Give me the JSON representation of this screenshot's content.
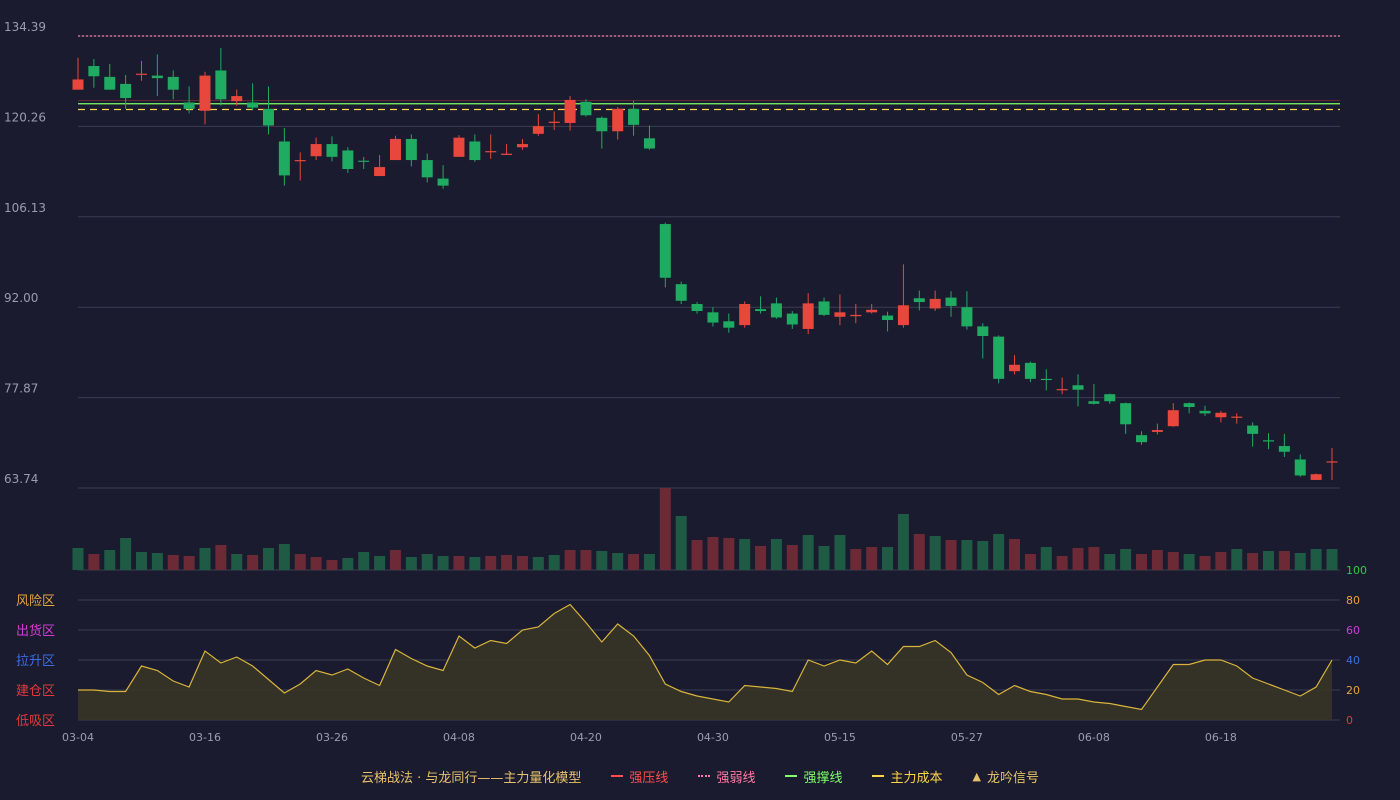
{
  "chart_data": {
    "type": "candlestick",
    "price_ticks": [
      "134.39",
      "120.26",
      "106.13",
      "92.00",
      "77.87",
      "63.74"
    ],
    "price_range": [
      63.74,
      134.39
    ],
    "date_ticks": [
      "03-04",
      "03-16",
      "03-26",
      "04-08",
      "04-20",
      "04-30",
      "05-15",
      "05-27",
      "06-08",
      "06-18"
    ],
    "candles": [
      [
        126.0,
        127.6,
        126.0,
        131.0
      ],
      [
        129.7,
        128.1,
        126.3,
        130.8
      ],
      [
        128.0,
        126.0,
        126.0,
        130.0
      ],
      [
        126.9,
        124.7,
        123.0,
        128.3
      ],
      [
        128.4,
        128.5,
        127.4,
        130.5
      ],
      [
        128.2,
        127.8,
        125.0,
        131.5
      ],
      [
        128.0,
        126.0,
        124.5,
        129.0
      ],
      [
        124.0,
        123.0,
        122.3,
        126.5
      ],
      [
        122.7,
        128.2,
        120.6,
        128.8
      ],
      [
        129.0,
        124.5,
        123.5,
        132.5
      ],
      [
        124.2,
        125.0,
        123.5,
        126.0
      ],
      [
        124.0,
        123.2,
        122.8,
        127.0
      ],
      [
        123.0,
        120.4,
        119.0,
        126.5
      ],
      [
        117.9,
        112.6,
        111.0,
        120.0
      ],
      [
        114.9,
        115.0,
        111.8,
        116.2
      ],
      [
        115.6,
        117.5,
        115.0,
        118.5
      ],
      [
        117.5,
        115.5,
        114.8,
        118.7
      ],
      [
        116.5,
        113.6,
        113.0,
        117.0
      ],
      [
        114.9,
        114.8,
        113.6,
        115.5
      ],
      [
        112.5,
        113.9,
        112.5,
        115.8
      ],
      [
        115.0,
        118.3,
        115.0,
        118.8
      ],
      [
        118.3,
        115.0,
        114.0,
        119.0
      ],
      [
        115.0,
        112.3,
        111.5,
        116.0
      ],
      [
        112.1,
        111.0,
        110.5,
        114.2
      ],
      [
        115.5,
        118.5,
        115.5,
        118.9
      ],
      [
        117.9,
        115.0,
        114.7,
        119.0
      ],
      [
        116.3,
        116.4,
        115.2,
        119.0
      ],
      [
        115.8,
        116.0,
        115.8,
        117.5
      ],
      [
        117.0,
        117.5,
        116.6,
        118.3
      ],
      [
        119.1,
        120.3,
        118.8,
        122.2
      ],
      [
        120.8,
        121.0,
        119.7,
        122.6
      ],
      [
        120.8,
        124.4,
        119.6,
        125.0
      ],
      [
        124.1,
        122.0,
        121.8,
        124.5
      ],
      [
        121.6,
        119.5,
        116.8,
        121.8
      ],
      [
        119.5,
        123.0,
        118.2,
        123.3
      ],
      [
        123.0,
        120.5,
        118.8,
        124.3
      ],
      [
        118.4,
        116.8,
        116.6,
        120.4
      ],
      [
        105.0,
        96.6,
        95.1,
        105.2
      ],
      [
        95.6,
        93.0,
        92.5,
        96.0
      ],
      [
        92.5,
        91.4,
        91.0,
        92.8
      ],
      [
        91.2,
        89.6,
        89.0,
        92.0
      ],
      [
        89.8,
        88.8,
        88.0,
        91.0
      ],
      [
        89.2,
        92.5,
        88.8,
        92.9
      ],
      [
        91.7,
        91.4,
        91.0,
        93.7
      ],
      [
        92.6,
        90.4,
        90.2,
        93.5
      ],
      [
        91.0,
        89.3,
        88.6,
        91.4
      ],
      [
        88.6,
        92.6,
        87.8,
        94.2
      ],
      [
        92.9,
        90.8,
        90.6,
        93.5
      ],
      [
        90.5,
        91.2,
        89.2,
        94.0
      ],
      [
        90.6,
        90.8,
        89.5,
        92.5
      ],
      [
        91.2,
        91.6,
        91.0,
        92.5
      ],
      [
        90.7,
        90.0,
        88.2,
        91.3
      ],
      [
        89.2,
        92.3,
        88.8,
        98.7
      ],
      [
        93.4,
        92.8,
        91.5,
        94.6
      ],
      [
        91.8,
        93.3,
        91.4,
        94.6
      ],
      [
        93.5,
        92.2,
        90.5,
        94.5
      ],
      [
        92.0,
        89.0,
        88.5,
        94.5
      ],
      [
        89.0,
        87.5,
        84.0,
        89.5
      ],
      [
        87.4,
        80.8,
        80.1,
        87.6
      ],
      [
        82.0,
        83.0,
        81.5,
        84.5
      ],
      [
        83.3,
        80.8,
        80.3,
        83.5
      ],
      [
        80.8,
        80.7,
        79.0,
        82.3
      ],
      [
        79.1,
        79.2,
        78.4,
        81.0
      ],
      [
        79.8,
        79.1,
        76.5,
        81.5
      ],
      [
        77.3,
        76.9,
        76.8,
        80.0
      ],
      [
        78.4,
        77.3,
        76.9,
        78.5
      ],
      [
        77.0,
        73.7,
        72.2,
        77.1
      ],
      [
        72.0,
        70.9,
        70.5,
        72.6
      ],
      [
        72.5,
        72.8,
        72.1,
        73.8
      ],
      [
        73.4,
        75.9,
        73.3,
        77.0
      ],
      [
        77.0,
        76.4,
        75.4,
        77.1
      ],
      [
        75.8,
        75.4,
        75.0,
        76.6
      ],
      [
        74.8,
        75.5,
        74.0,
        75.8
      ],
      [
        74.9,
        74.9,
        73.8,
        75.4
      ],
      [
        73.5,
        72.2,
        70.2,
        74.0
      ],
      [
        71.2,
        71.1,
        69.8,
        72.3
      ],
      [
        70.3,
        69.4,
        68.6,
        72.2
      ],
      [
        68.2,
        65.7,
        65.5,
        69.0
      ],
      [
        65.0,
        65.9,
        65.0,
        66.0
      ],
      [
        67.8,
        67.9,
        65.0,
        70.0
      ]
    ],
    "volume": [
      22,
      16,
      20,
      32,
      18,
      17,
      15,
      14,
      22,
      25,
      16,
      15,
      22,
      26,
      16,
      13,
      10,
      12,
      18,
      14,
      20,
      13,
      16,
      14,
      14,
      13,
      14,
      15,
      14,
      13,
      15,
      20,
      20,
      19,
      17,
      16,
      16,
      82,
      54,
      30,
      33,
      32,
      31,
      24,
      31,
      25,
      35,
      24,
      35,
      21,
      23,
      23,
      56,
      36,
      34,
      30,
      30,
      29,
      36,
      31,
      16,
      23,
      14,
      22,
      23,
      16,
      21,
      16,
      20,
      18,
      16,
      14,
      18,
      21,
      17,
      19,
      19,
      17,
      21,
      21
    ],
    "volume_is_up": [
      0,
      1,
      0,
      0,
      0,
      0,
      1,
      1,
      0,
      1,
      0,
      1,
      0,
      0,
      1,
      1,
      1,
      0,
      0,
      0,
      1,
      0,
      0,
      0,
      1,
      0,
      1,
      1,
      1,
      0,
      0,
      1,
      1,
      0,
      0,
      1,
      0,
      1,
      0,
      1,
      1,
      1,
      0,
      1,
      0,
      1,
      0,
      0,
      0,
      1,
      1,
      0,
      0,
      1,
      0,
      1,
      0,
      0,
      0,
      1,
      1,
      0,
      1,
      1,
      1,
      0,
      0,
      1,
      1,
      1,
      0,
      1,
      1,
      0,
      1,
      0,
      1,
      0,
      0,
      0
    ],
    "indicator": {
      "range": [
        0,
        100
      ],
      "right_ticks": [
        "100",
        "80",
        "60",
        "40",
        "20",
        "0"
      ],
      "right_tick_colors": [
        "#2ecc40",
        "#e8a33a",
        "#d63ad6",
        "#3b6fe0",
        "#e8a33a",
        "#e03a3a"
      ],
      "zone_labels": [
        "风险区",
        "出货区",
        "拉升区",
        "建仓区",
        "低吸区"
      ],
      "zone_label_colors": [
        "#e8a33a",
        "#d63ad6",
        "#3b6fe0",
        "#e03a3a",
        "#e03a3a"
      ],
      "values": [
        20,
        20,
        19,
        19,
        36,
        33,
        26,
        22,
        46,
        38,
        42,
        36,
        27,
        18,
        24,
        33,
        30,
        34,
        28,
        23,
        47,
        41,
        36,
        33,
        56,
        48,
        53,
        51,
        60,
        62,
        71,
        77,
        65,
        52,
        64,
        56,
        43,
        24,
        19,
        16,
        14,
        12,
        23,
        22,
        21,
        19,
        40,
        36,
        40,
        38,
        46,
        37,
        49,
        49,
        53,
        45,
        30,
        25,
        17,
        23,
        19,
        17,
        14,
        14,
        12,
        11,
        9,
        7,
        22,
        37,
        37,
        40,
        40,
        36,
        28,
        24,
        20,
        16,
        22,
        40
      ]
    },
    "lines": {
      "strong_pressure": 124.2,
      "strong_support": 123.8,
      "strong_weak": 134.39,
      "main_cost": 122.9
    },
    "legend": [
      {
        "label": "云梯战法 · 与龙同行——主力量化模型",
        "color": "#e8c26a",
        "marker": "none"
      },
      {
        "label": "强压线",
        "color": "#ff4d4d",
        "marker": "solid"
      },
      {
        "label": "强弱线",
        "color": "#ff7aa2",
        "marker": "dotted"
      },
      {
        "label": "强撑线",
        "color": "#7dff6b",
        "marker": "solid"
      },
      {
        "label": "主力成本",
        "color": "#ffd54a",
        "marker": "dashed"
      },
      {
        "label": "龙吟信号",
        "color": "#e8c26a",
        "marker": "triangle"
      }
    ]
  },
  "colors": {
    "background": "#1a1b2e",
    "grid": "#3a3c52",
    "up": "#e8473d",
    "down": "#1fab62",
    "vol_up": "#6b2a36",
    "vol_down": "#1f5a44",
    "axis_text": "#9a9cb0",
    "indicator_line": "#d9b43a",
    "indicator_fill": "#3a3526"
  }
}
